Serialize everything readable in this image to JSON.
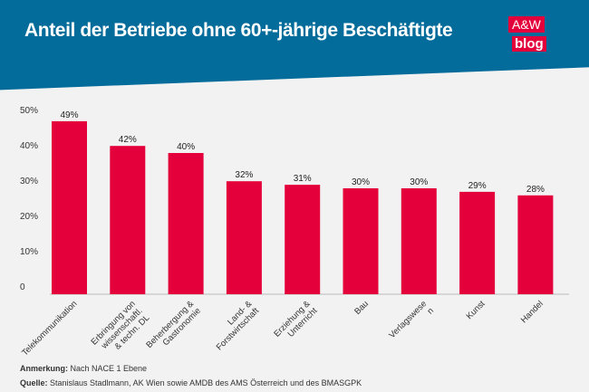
{
  "header": {
    "title": "Anteil der Betriebe ohne 60+-jährige Beschäftigte",
    "logo_top": "A&W",
    "logo_bottom": "blog"
  },
  "colors": {
    "header": "#046c9a",
    "bar": "#e4003a",
    "logo": "#e4003a"
  },
  "chart_data": {
    "type": "bar",
    "title": "Anteil der Betriebe ohne 60+-jährige Beschäftigte",
    "categories": [
      [
        "Telekommunikation"
      ],
      [
        "Erbringung von",
        "wissenschaftl.",
        "& techn. DL"
      ],
      [
        "Beherbergung &",
        "Gastronomie"
      ],
      [
        "Land- &",
        "Forstwirtschaft"
      ],
      [
        "Erziehung &",
        "Unterricht"
      ],
      [
        "Bau"
      ],
      [
        "Verlagswese",
        "n"
      ],
      [
        "Kunst"
      ],
      [
        "Handel"
      ]
    ],
    "values": [
      49,
      42,
      40,
      32,
      31,
      30,
      30,
      29,
      28
    ],
    "data_labels": [
      "49%",
      "42%",
      "40%",
      "32%",
      "31%",
      "30%",
      "30%",
      "29%",
      "28%"
    ],
    "yticks": [
      "0",
      "10%",
      "20%",
      "30%",
      "40%",
      "50%"
    ],
    "ylim": [
      0,
      50
    ],
    "grid": false
  },
  "notes": {
    "remark_label": "Anmerkung:",
    "remark": " Nach NACE 1 Ebene",
    "source_label": "Quelle:",
    "source": " Stanislaus Stadlmann, AK Wien sowie AMDB des AMS Österreich und des BMASGPK"
  }
}
